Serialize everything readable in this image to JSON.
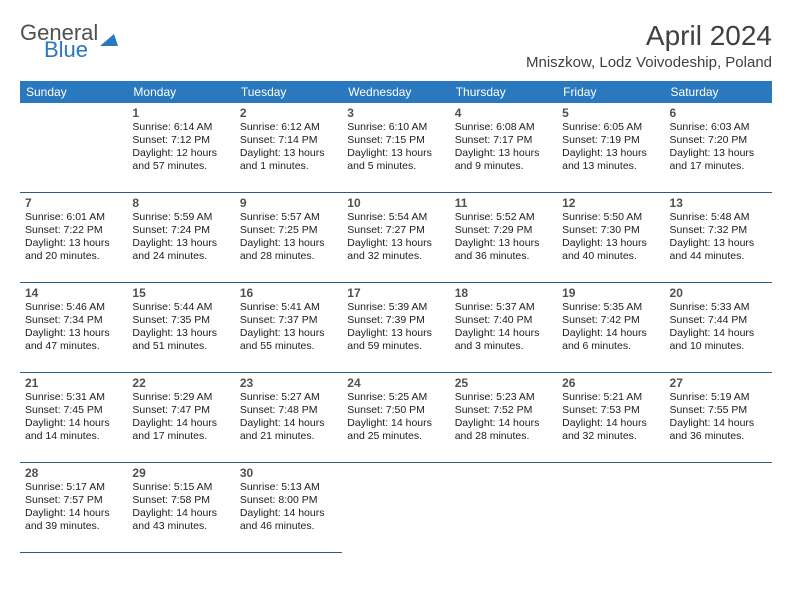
{
  "brand": {
    "part1": "General",
    "part2": "Blue"
  },
  "title": "April 2024",
  "location": "Mniszkow, Lodz Voivodeship, Poland",
  "colors": {
    "header_bg": "#2a78bd",
    "header_text": "#ffffff",
    "rule": "#2a5a8a",
    "text": "#202020",
    "title_text": "#404040"
  },
  "day_headers": [
    "Sunday",
    "Monday",
    "Tuesday",
    "Wednesday",
    "Thursday",
    "Friday",
    "Saturday"
  ],
  "weeks": [
    [
      null,
      {
        "n": "1",
        "sr": "6:14 AM",
        "ss": "7:12 PM",
        "dl": "12 hours and 57 minutes."
      },
      {
        "n": "2",
        "sr": "6:12 AM",
        "ss": "7:14 PM",
        "dl": "13 hours and 1 minutes."
      },
      {
        "n": "3",
        "sr": "6:10 AM",
        "ss": "7:15 PM",
        "dl": "13 hours and 5 minutes."
      },
      {
        "n": "4",
        "sr": "6:08 AM",
        "ss": "7:17 PM",
        "dl": "13 hours and 9 minutes."
      },
      {
        "n": "5",
        "sr": "6:05 AM",
        "ss": "7:19 PM",
        "dl": "13 hours and 13 minutes."
      },
      {
        "n": "6",
        "sr": "6:03 AM",
        "ss": "7:20 PM",
        "dl": "13 hours and 17 minutes."
      }
    ],
    [
      {
        "n": "7",
        "sr": "6:01 AM",
        "ss": "7:22 PM",
        "dl": "13 hours and 20 minutes."
      },
      {
        "n": "8",
        "sr": "5:59 AM",
        "ss": "7:24 PM",
        "dl": "13 hours and 24 minutes."
      },
      {
        "n": "9",
        "sr": "5:57 AM",
        "ss": "7:25 PM",
        "dl": "13 hours and 28 minutes."
      },
      {
        "n": "10",
        "sr": "5:54 AM",
        "ss": "7:27 PM",
        "dl": "13 hours and 32 minutes."
      },
      {
        "n": "11",
        "sr": "5:52 AM",
        "ss": "7:29 PM",
        "dl": "13 hours and 36 minutes."
      },
      {
        "n": "12",
        "sr": "5:50 AM",
        "ss": "7:30 PM",
        "dl": "13 hours and 40 minutes."
      },
      {
        "n": "13",
        "sr": "5:48 AM",
        "ss": "7:32 PM",
        "dl": "13 hours and 44 minutes."
      }
    ],
    [
      {
        "n": "14",
        "sr": "5:46 AM",
        "ss": "7:34 PM",
        "dl": "13 hours and 47 minutes."
      },
      {
        "n": "15",
        "sr": "5:44 AM",
        "ss": "7:35 PM",
        "dl": "13 hours and 51 minutes."
      },
      {
        "n": "16",
        "sr": "5:41 AM",
        "ss": "7:37 PM",
        "dl": "13 hours and 55 minutes."
      },
      {
        "n": "17",
        "sr": "5:39 AM",
        "ss": "7:39 PM",
        "dl": "13 hours and 59 minutes."
      },
      {
        "n": "18",
        "sr": "5:37 AM",
        "ss": "7:40 PM",
        "dl": "14 hours and 3 minutes."
      },
      {
        "n": "19",
        "sr": "5:35 AM",
        "ss": "7:42 PM",
        "dl": "14 hours and 6 minutes."
      },
      {
        "n": "20",
        "sr": "5:33 AM",
        "ss": "7:44 PM",
        "dl": "14 hours and 10 minutes."
      }
    ],
    [
      {
        "n": "21",
        "sr": "5:31 AM",
        "ss": "7:45 PM",
        "dl": "14 hours and 14 minutes."
      },
      {
        "n": "22",
        "sr": "5:29 AM",
        "ss": "7:47 PM",
        "dl": "14 hours and 17 minutes."
      },
      {
        "n": "23",
        "sr": "5:27 AM",
        "ss": "7:48 PM",
        "dl": "14 hours and 21 minutes."
      },
      {
        "n": "24",
        "sr": "5:25 AM",
        "ss": "7:50 PM",
        "dl": "14 hours and 25 minutes."
      },
      {
        "n": "25",
        "sr": "5:23 AM",
        "ss": "7:52 PM",
        "dl": "14 hours and 28 minutes."
      },
      {
        "n": "26",
        "sr": "5:21 AM",
        "ss": "7:53 PM",
        "dl": "14 hours and 32 minutes."
      },
      {
        "n": "27",
        "sr": "5:19 AM",
        "ss": "7:55 PM",
        "dl": "14 hours and 36 minutes."
      }
    ],
    [
      {
        "n": "28",
        "sr": "5:17 AM",
        "ss": "7:57 PM",
        "dl": "14 hours and 39 minutes."
      },
      {
        "n": "29",
        "sr": "5:15 AM",
        "ss": "7:58 PM",
        "dl": "14 hours and 43 minutes."
      },
      {
        "n": "30",
        "sr": "5:13 AM",
        "ss": "8:00 PM",
        "dl": "14 hours and 46 minutes."
      },
      null,
      null,
      null,
      null
    ]
  ],
  "labels": {
    "sunrise": "Sunrise:",
    "sunset": "Sunset:",
    "daylight": "Daylight:"
  }
}
